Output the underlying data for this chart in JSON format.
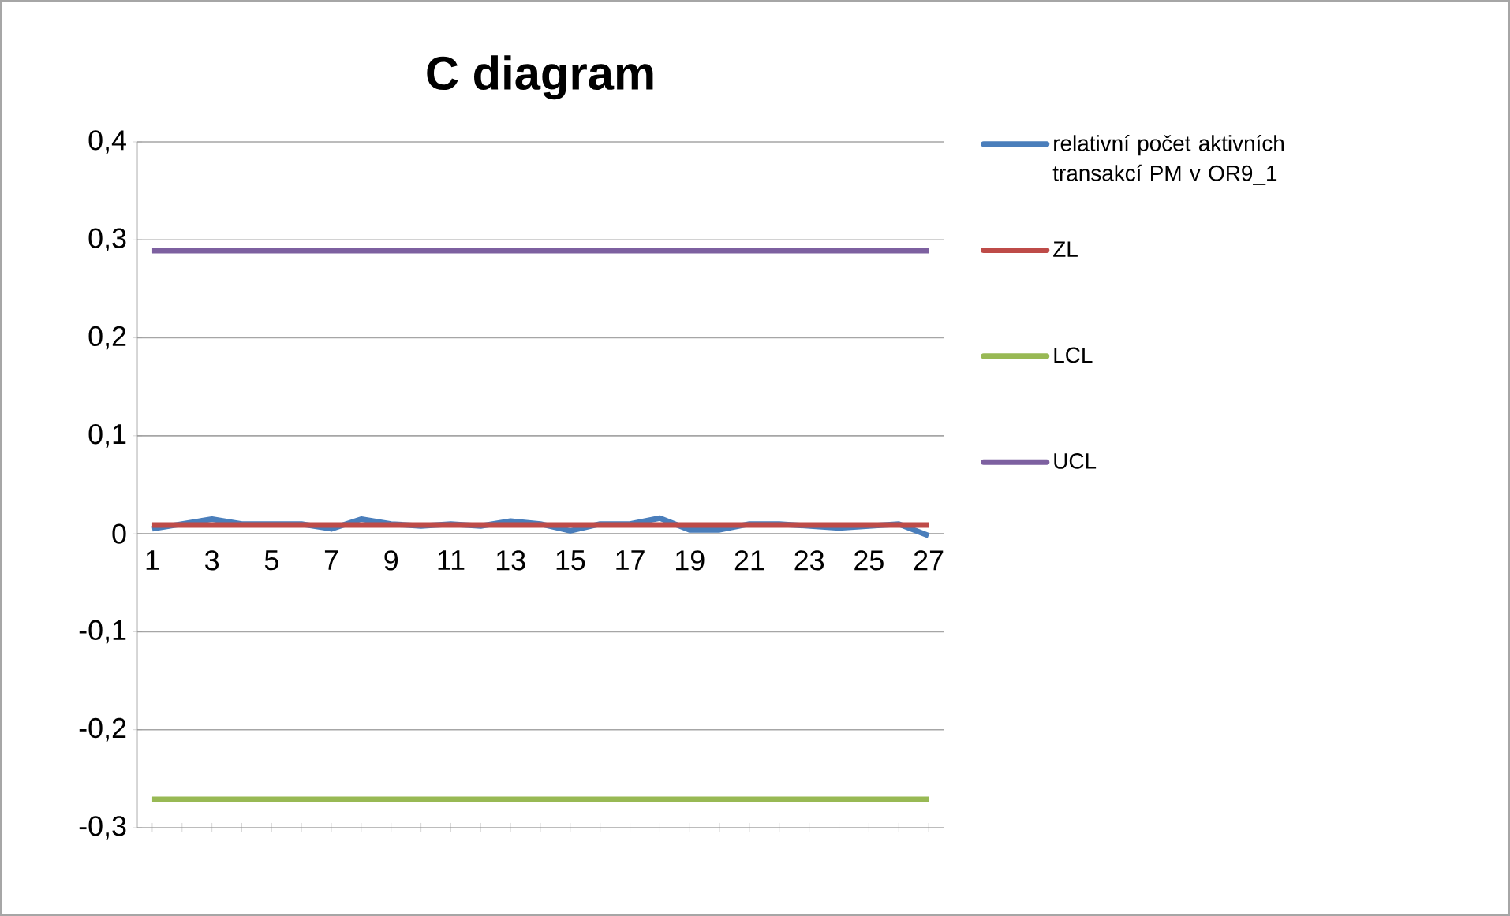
{
  "chart_data": {
    "type": "line",
    "title": "C diagram",
    "categories": [
      "1",
      null,
      "3",
      null,
      "5",
      null,
      "7",
      null,
      "9",
      null,
      "11",
      null,
      "13",
      null,
      "15",
      null,
      "17",
      null,
      "19",
      null,
      "21",
      null,
      "23",
      null,
      "25",
      null,
      "27"
    ],
    "series": [
      {
        "name": "relativní počet aktivních transakcí PM v OR9_1",
        "color": "#4a7ebb",
        "values": [
          0.005,
          0.01,
          0.015,
          0.01,
          0.01,
          0.01,
          0.005,
          0.015,
          0.01,
          0.008,
          0.01,
          0.008,
          0.013,
          0.01,
          0.003,
          0.01,
          0.01,
          0.016,
          0.004,
          0.004,
          0.01,
          0.01,
          0.008,
          0.006,
          0.008,
          0.01,
          -0.002
        ]
      },
      {
        "name": "ZL",
        "color": "#be4b48",
        "values": [
          0.009,
          0.009,
          0.009,
          0.009,
          0.009,
          0.009,
          0.009,
          0.009,
          0.009,
          0.009,
          0.009,
          0.009,
          0.009,
          0.009,
          0.009,
          0.009,
          0.009,
          0.009,
          0.009,
          0.009,
          0.009,
          0.009,
          0.009,
          0.009,
          0.009,
          0.009,
          0.009
        ]
      },
      {
        "name": "LCL",
        "color": "#98b954",
        "values": [
          -0.271,
          -0.271,
          -0.271,
          -0.271,
          -0.271,
          -0.271,
          -0.271,
          -0.271,
          -0.271,
          -0.271,
          -0.271,
          -0.271,
          -0.271,
          -0.271,
          -0.271,
          -0.271,
          -0.271,
          -0.271,
          -0.271,
          -0.271,
          -0.271,
          -0.271,
          -0.271,
          -0.271,
          -0.271,
          -0.271,
          -0.271
        ]
      },
      {
        "name": "UCL",
        "color": "#7d60a0",
        "values": [
          0.289,
          0.289,
          0.289,
          0.289,
          0.289,
          0.289,
          0.289,
          0.289,
          0.289,
          0.289,
          0.289,
          0.289,
          0.289,
          0.289,
          0.289,
          0.289,
          0.289,
          0.289,
          0.289,
          0.289,
          0.289,
          0.289,
          0.289,
          0.289,
          0.289,
          0.289,
          0.289
        ]
      }
    ],
    "ylim": [
      -0.3,
      0.4
    ],
    "yticks": [
      {
        "value": -0.3,
        "label": "-0,3"
      },
      {
        "value": -0.2,
        "label": "-0,2"
      },
      {
        "value": -0.1,
        "label": "-0,1"
      },
      0,
      {
        "value": 0.1,
        "label": "0,1"
      },
      {
        "value": 0.2,
        "label": "0,2"
      },
      {
        "value": 0.3,
        "label": "0,3"
      },
      {
        "value": 0.4,
        "label": "0,4"
      }
    ],
    "grid": "y",
    "legend": "right",
    "marker": "none",
    "line_style": "solid"
  }
}
